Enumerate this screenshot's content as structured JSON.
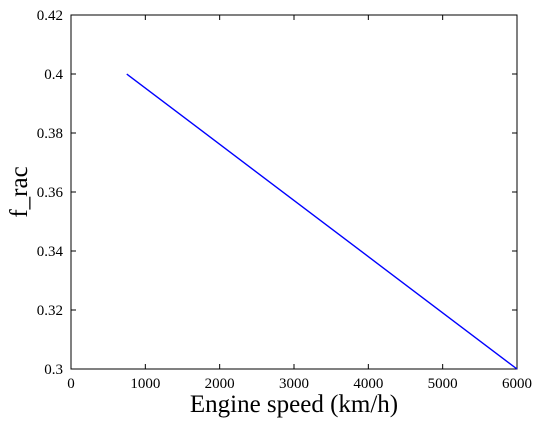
{
  "chart_data": {
    "type": "line",
    "title": "",
    "xlabel": "Engine speed (km/h)",
    "ylabel": "f_rac",
    "xlim": [
      0,
      6000
    ],
    "ylim": [
      0.3,
      0.42
    ],
    "xticks": [
      0,
      1000,
      2000,
      3000,
      4000,
      5000,
      6000
    ],
    "xtick_labels": [
      "0",
      "1000",
      "2000",
      "3000",
      "4000",
      "5000",
      "6000"
    ],
    "yticks": [
      0.3,
      0.32,
      0.34,
      0.36,
      0.38,
      0.4,
      0.42
    ],
    "ytick_labels": [
      "0.3",
      "0.32",
      "0.34",
      "0.36",
      "0.38",
      "0.4",
      "0.42"
    ],
    "grid": false,
    "legend": false,
    "series": [
      {
        "color": "#0000ff",
        "x": [
          750,
          6000
        ],
        "y": [
          0.4,
          0.3
        ]
      }
    ]
  }
}
